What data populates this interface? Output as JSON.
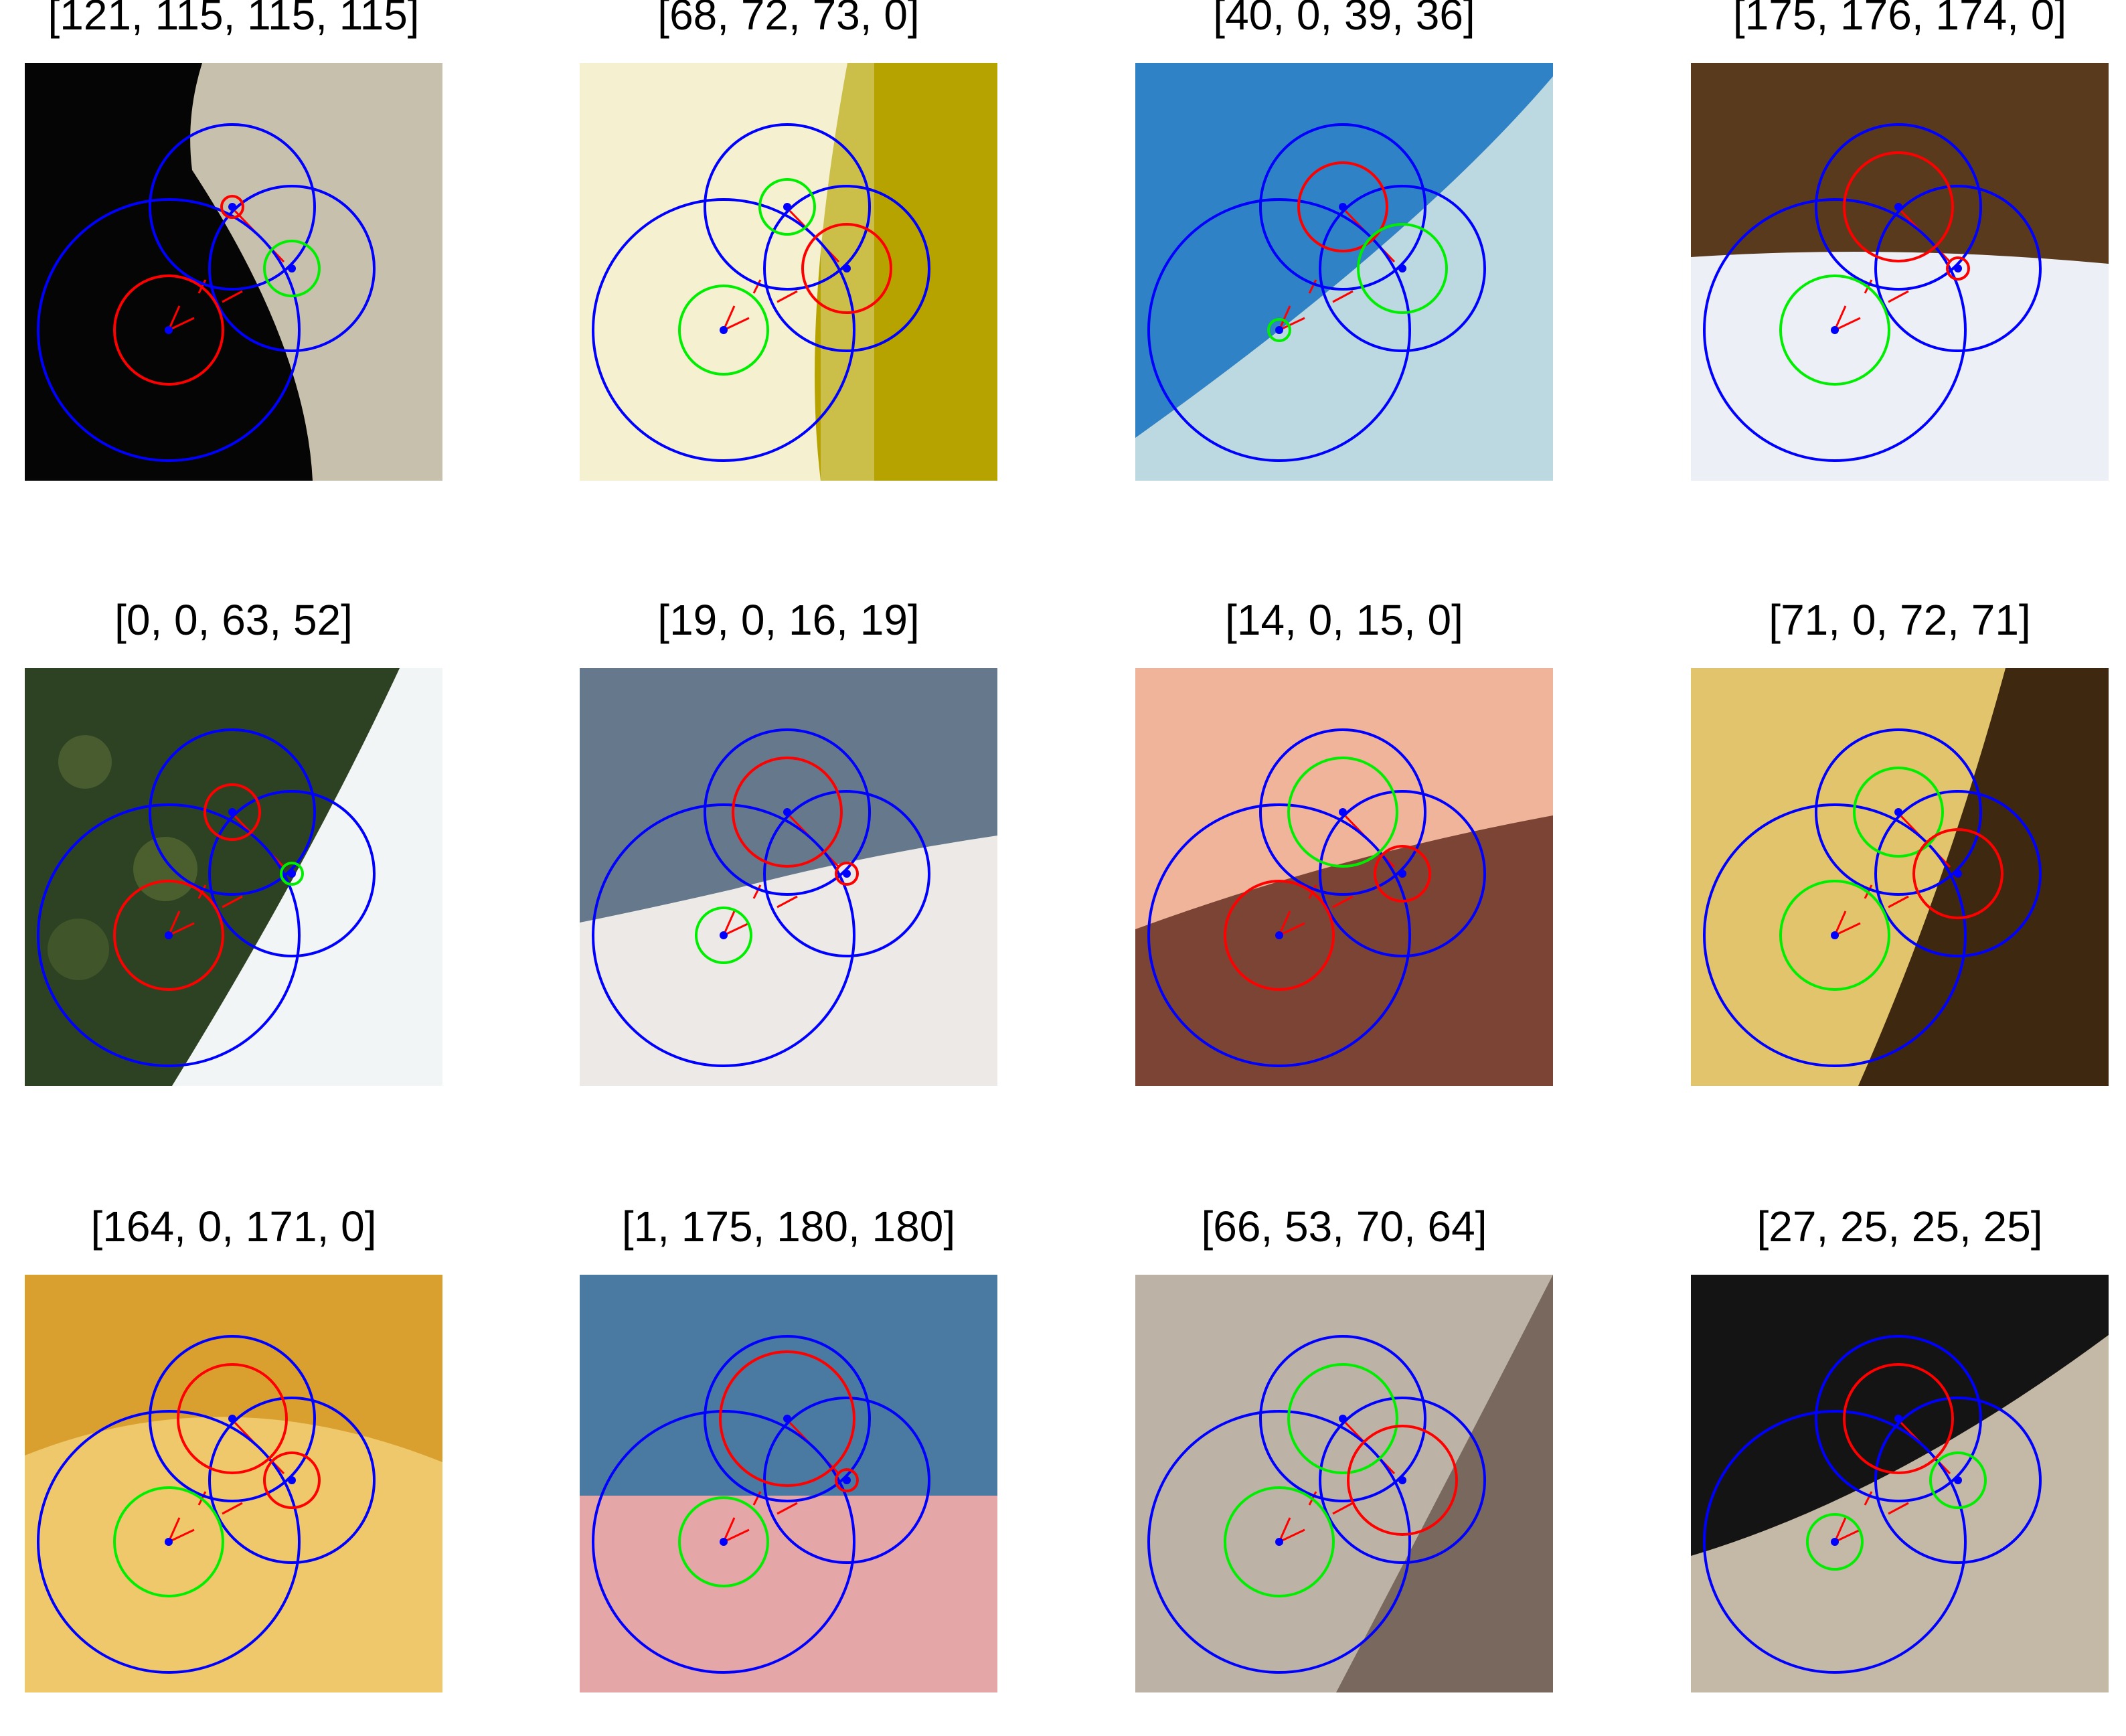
{
  "colors": {
    "outer_circle": "#0000ff",
    "center_dot": "#0000ff",
    "highlight_red": "#ff0000",
    "highlight_green": "#00ee00",
    "spoke": "#ff0000"
  },
  "panels": [
    {
      "title": "[121, 115, 115, 115]",
      "background": "dark-left-beige-right",
      "base_colors": [
        "#050505",
        "#c7c0ad"
      ],
      "small": [
        {
          "center": "center-0",
          "color": "red",
          "size": "large"
        },
        {
          "center": "center-1",
          "color": "red",
          "size": "tiny"
        },
        {
          "center": "center-2",
          "color": "green",
          "size": "small"
        }
      ]
    },
    {
      "title": "[68, 72, 73, 0]",
      "background": "pale-left-olive-right",
      "base_colors": [
        "#f4f0d0",
        "#b6a300"
      ],
      "small": [
        {
          "center": "center-0",
          "color": "green",
          "size": "medium"
        },
        {
          "center": "center-1",
          "color": "green",
          "size": "small"
        },
        {
          "center": "center-2",
          "color": "red",
          "size": "medium"
        }
      ]
    },
    {
      "title": "[40, 0, 39, 36]",
      "background": "blue-top-left-pale-bottom-right",
      "base_colors": [
        "#2f82c6",
        "#bcd8e0"
      ],
      "small": [
        {
          "center": "center-0",
          "color": "green",
          "size": "tiny"
        },
        {
          "center": "center-1",
          "color": "red",
          "size": "medium"
        },
        {
          "center": "center-2",
          "color": "green",
          "size": "medium"
        }
      ]
    },
    {
      "title": "[175, 176, 174, 0]",
      "background": "brown-top-white-bottom",
      "base_colors": [
        "#5a3a1c",
        "#eceff5"
      ],
      "small": [
        {
          "center": "center-0",
          "color": "green",
          "size": "large"
        },
        {
          "center": "center-1",
          "color": "red",
          "size": "large"
        },
        {
          "center": "center-2",
          "color": "red",
          "size": "tiny"
        }
      ]
    },
    {
      "title": "[0, 0, 63, 52]",
      "background": "foliage-left-white-right",
      "base_colors": [
        "#2d4222",
        "#f2f5f5"
      ],
      "small": [
        {
          "center": "center-0",
          "color": "red",
          "size": "large"
        },
        {
          "center": "center-1",
          "color": "red",
          "size": "small"
        },
        {
          "center": "center-2",
          "color": "green",
          "size": "tiny"
        }
      ]
    },
    {
      "title": "[19, 0, 16, 19]",
      "background": "slate-top-white-bottom",
      "base_colors": [
        "#65788c",
        "#ece9e6"
      ],
      "small": [
        {
          "center": "center-0",
          "color": "green",
          "size": "small"
        },
        {
          "center": "center-1",
          "color": "red",
          "size": "large"
        },
        {
          "center": "center-2",
          "color": "red",
          "size": "tiny"
        }
      ]
    },
    {
      "title": "[14, 0, 15, 0]",
      "background": "peach-top-brown-bottom",
      "base_colors": [
        "#f0b49a",
        "#7c4434"
      ],
      "small": [
        {
          "center": "center-0",
          "color": "red",
          "size": "large"
        },
        {
          "center": "center-1",
          "color": "green",
          "size": "large"
        },
        {
          "center": "center-2",
          "color": "red",
          "size": "small"
        }
      ]
    },
    {
      "title": "[71, 0, 72, 71]",
      "background": "yellow-left-brown-right",
      "base_colors": [
        "#e2c46c",
        "#3e2810"
      ],
      "small": [
        {
          "center": "center-0",
          "color": "green",
          "size": "large"
        },
        {
          "center": "center-1",
          "color": "green",
          "size": "medium"
        },
        {
          "center": "center-2",
          "color": "red",
          "size": "medium"
        }
      ]
    },
    {
      "title": "[164, 0, 171, 0]",
      "background": "orange-top-yellow-bottom",
      "base_colors": [
        "#d9a030",
        "#eec86a"
      ],
      "small": [
        {
          "center": "center-0",
          "color": "green",
          "size": "large"
        },
        {
          "center": "center-1",
          "color": "red",
          "size": "large"
        },
        {
          "center": "center-2",
          "color": "red",
          "size": "small"
        }
      ]
    },
    {
      "title": "[1, 175, 180, 180]",
      "background": "blue-top-pink-bottom",
      "base_colors": [
        "#4a7aa2",
        "#e4a6a6"
      ],
      "small": [
        {
          "center": "center-0",
          "color": "green",
          "size": "medium"
        },
        {
          "center": "center-1",
          "color": "red",
          "size": "xlarge"
        },
        {
          "center": "center-2",
          "color": "red",
          "size": "tiny"
        }
      ]
    },
    {
      "title": "[66, 53, 70, 64]",
      "background": "greige-left-taupe-right",
      "base_colors": [
        "#bcb3a6",
        "#78685e"
      ],
      "small": [
        {
          "center": "center-0",
          "color": "green",
          "size": "large"
        },
        {
          "center": "center-1",
          "color": "green",
          "size": "large"
        },
        {
          "center": "center-2",
          "color": "red",
          "size": "large"
        }
      ]
    },
    {
      "title": "[27, 25, 25, 25]",
      "background": "black-top-left-beige-bottom-right",
      "base_colors": [
        "#141414",
        "#c4b8a6"
      ],
      "small": [
        {
          "center": "center-0",
          "color": "green",
          "size": "small"
        },
        {
          "center": "center-1",
          "color": "red",
          "size": "large"
        },
        {
          "center": "center-2",
          "color": "green",
          "size": "small"
        }
      ]
    }
  ]
}
